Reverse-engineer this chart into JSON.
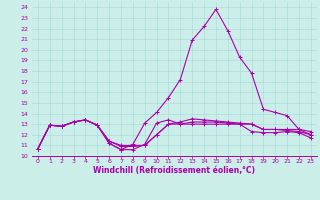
{
  "background_color": "#cceee8",
  "grid_color": "#aadddd",
  "line_color": "#aa00aa",
  "xlabel": "Windchill (Refroidissement éolien,°C)",
  "xlim": [
    -0.5,
    23.5
  ],
  "ylim": [
    10,
    24.5
  ],
  "yticks": [
    10,
    11,
    12,
    13,
    14,
    15,
    16,
    17,
    18,
    19,
    20,
    21,
    22,
    23,
    24
  ],
  "xticks": [
    0,
    1,
    2,
    3,
    4,
    5,
    6,
    7,
    8,
    9,
    10,
    11,
    12,
    13,
    14,
    15,
    16,
    17,
    18,
    19,
    20,
    21,
    22,
    23
  ],
  "series": [
    [
      10.7,
      12.9,
      12.8,
      13.2,
      13.4,
      12.9,
      11.2,
      10.6,
      10.6,
      11.1,
      13.1,
      13.4,
      13.0,
      13.2,
      13.2,
      13.2,
      13.1,
      13.0,
      12.3,
      12.2,
      12.2,
      12.3,
      12.2,
      11.7
    ],
    [
      10.7,
      12.9,
      12.8,
      13.2,
      13.4,
      12.9,
      11.2,
      10.6,
      11.1,
      13.1,
      14.1,
      15.5,
      17.2,
      20.9,
      22.2,
      23.8,
      21.8,
      19.3,
      17.8,
      14.4,
      14.1,
      13.8,
      12.5,
      12.3
    ],
    [
      10.7,
      12.9,
      12.8,
      13.2,
      13.4,
      12.9,
      11.4,
      11.0,
      11.0,
      11.0,
      12.0,
      13.0,
      13.0,
      13.0,
      13.0,
      13.0,
      13.0,
      13.0,
      13.0,
      12.5,
      12.5,
      12.5,
      12.5,
      12.0
    ],
    [
      10.7,
      12.9,
      12.8,
      13.2,
      13.4,
      12.9,
      11.4,
      10.9,
      10.9,
      11.0,
      12.0,
      13.0,
      13.2,
      13.5,
      13.4,
      13.3,
      13.2,
      13.1,
      13.0,
      12.5,
      12.5,
      12.4,
      12.3,
      12.0
    ]
  ],
  "figsize": [
    3.2,
    2.0
  ],
  "dpi": 100
}
